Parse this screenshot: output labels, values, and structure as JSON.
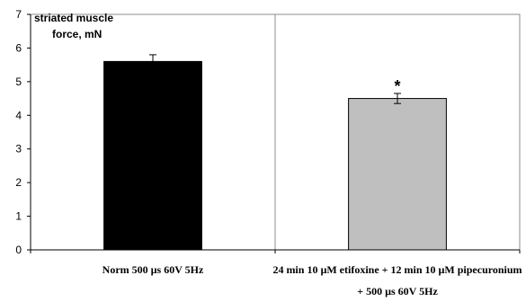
{
  "chart_data": {
    "type": "bar",
    "ylabel_lines": [
      "striated muscle",
      "force, mN"
    ],
    "ylim": [
      0,
      7
    ],
    "yticks": [
      0,
      1,
      2,
      3,
      4,
      5,
      6,
      7
    ],
    "grid": true,
    "categories": [
      {
        "lines": [
          "Norm  500 µs  60V  5Hz"
        ],
        "value": 5.6,
        "error": 0.2,
        "color": "#000000",
        "annotation": ""
      },
      {
        "lines": [
          "24 min  10 µM etifoxine + 12 min 10 µM pipecuronium",
          "+ 500 µs  60V  5Hz"
        ],
        "value": 4.5,
        "error": 0.15,
        "color": "#bfbfbf",
        "annotation": "*"
      }
    ]
  }
}
